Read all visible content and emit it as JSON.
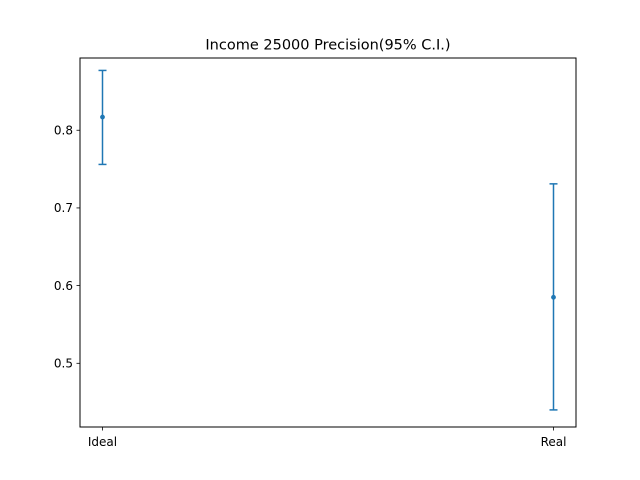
{
  "chart_data": {
    "type": "errorbar",
    "title": "Income 25000 Precision(95% C.I.)",
    "xlabel": "",
    "ylabel": "",
    "categories": [
      "Ideal",
      "Real"
    ],
    "series": [
      {
        "values": [
          0.817,
          0.585
        ],
        "lower": [
          0.756,
          0.44
        ],
        "upper": [
          0.877,
          0.731
        ],
        "color": "#1f77b4"
      }
    ],
    "ylim": [
      0.418,
      0.893
    ],
    "yticks": [
      0.5,
      0.6,
      0.7,
      0.8
    ],
    "ytick_labels": [
      "0.5",
      "0.6",
      "0.7",
      "0.8"
    ],
    "grid": false
  }
}
